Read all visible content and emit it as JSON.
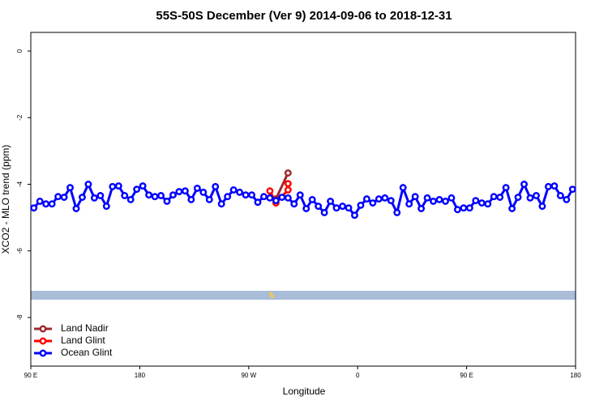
{
  "chart_data": {
    "type": "line",
    "title": "55S-50S December (Ver 9)   2014-09-06 to 2018-12-31",
    "x_label": "Longitude",
    "y_label": "XCO2 - MLO trend (ppm)",
    "xlim": [
      90,
      540
    ],
    "ylim": [
      -9.46,
      0.56
    ],
    "xticks": [
      {
        "value": 90,
        "label": "90 E"
      },
      180,
      {
        "value": 270,
        "label": "90 W"
      },
      {
        "value": 360,
        "label": "0"
      },
      {
        "value": 450,
        "label": "90 E"
      },
      {
        "value": 540,
        "label": "180"
      }
    ],
    "yticks": [
      0,
      -2,
      -4,
      -6,
      -8
    ],
    "legend": "bottom-left",
    "series": [
      {
        "name": "Land Nadir",
        "color": "#a0282c",
        "x": [
          292.5,
          302.5
        ],
        "values": [
          -4.44,
          -3.66
        ]
      },
      {
        "name": "Land Glint",
        "color": "#ff0000",
        "x": [
          287.5,
          292.5,
          302.5,
          302.5
        ],
        "values": [
          -4.2,
          -4.56,
          -4.17,
          -3.98
        ]
      },
      {
        "name": "Ocean Glint",
        "color": "#0000ff",
        "x": [
          92.5,
          97.5,
          102.5,
          107.5,
          112.5,
          117.5,
          122.5,
          127.5,
          132.5,
          137.5,
          142.5,
          147.5,
          152.5,
          157.5,
          162.5,
          167.5,
          172.5,
          177.5,
          182.5,
          187.5,
          192.5,
          197.5,
          202.5,
          207.5,
          212.5,
          217.5,
          222.5,
          227.5,
          232.5,
          237.5,
          242.5,
          247.5,
          252.5,
          257.5,
          262.5,
          267.5,
          272.5,
          277.5,
          282.5,
          287.5,
          292.5,
          297.5,
          302.5,
          307.5,
          312.5,
          317.5,
          322.5,
          327.5,
          332.5,
          337.5,
          342.5,
          347.5,
          352.5,
          357.5,
          362.5,
          367.5,
          372.5,
          377.5,
          382.5,
          387.5,
          392.5,
          397.5,
          402.5,
          407.5,
          412.5,
          417.5,
          422.5,
          427.5,
          432.5,
          437.5,
          442.5,
          447.5,
          452.5,
          457.5,
          462.5,
          467.5,
          472.5,
          477.5,
          482.5,
          487.5,
          492.5,
          497.5,
          502.5,
          507.5,
          512.5,
          517.5,
          522.5,
          527.5,
          532.5,
          537.5
        ],
        "values": [
          -4.71,
          -4.51,
          -4.59,
          -4.59,
          -4.37,
          -4.39,
          -4.1,
          -4.73,
          -4.39,
          -4.0,
          -4.41,
          -4.34,
          -4.66,
          -4.07,
          -4.05,
          -4.34,
          -4.46,
          -4.15,
          -4.05,
          -4.32,
          -4.37,
          -4.34,
          -4.51,
          -4.32,
          -4.22,
          -4.2,
          -4.46,
          -4.12,
          -4.24,
          -4.46,
          -4.07,
          -4.59,
          -4.37,
          -4.17,
          -4.24,
          -4.32,
          -4.32,
          -4.54,
          -4.37,
          -4.41,
          -4.49,
          -4.39,
          -4.41,
          -4.59,
          -4.32,
          -4.73,
          -4.46,
          -4.66,
          -4.85,
          -4.51,
          -4.71,
          -4.66,
          -4.71,
          -4.93,
          -4.63,
          -4.44,
          -4.56,
          -4.44,
          -4.41,
          -4.49,
          -4.85,
          -4.1,
          -4.59,
          -4.37,
          -4.73,
          -4.41,
          -4.51,
          -4.46,
          -4.51,
          -4.41,
          -4.76,
          -4.71,
          -4.71,
          -4.49,
          -4.56,
          -4.59,
          -4.37,
          -4.39,
          -4.1,
          -4.73,
          -4.39,
          -4.0,
          -4.41,
          -4.34,
          -4.66,
          -4.07,
          -4.05,
          -4.34,
          -4.46,
          -4.15
        ]
      }
    ]
  }
}
